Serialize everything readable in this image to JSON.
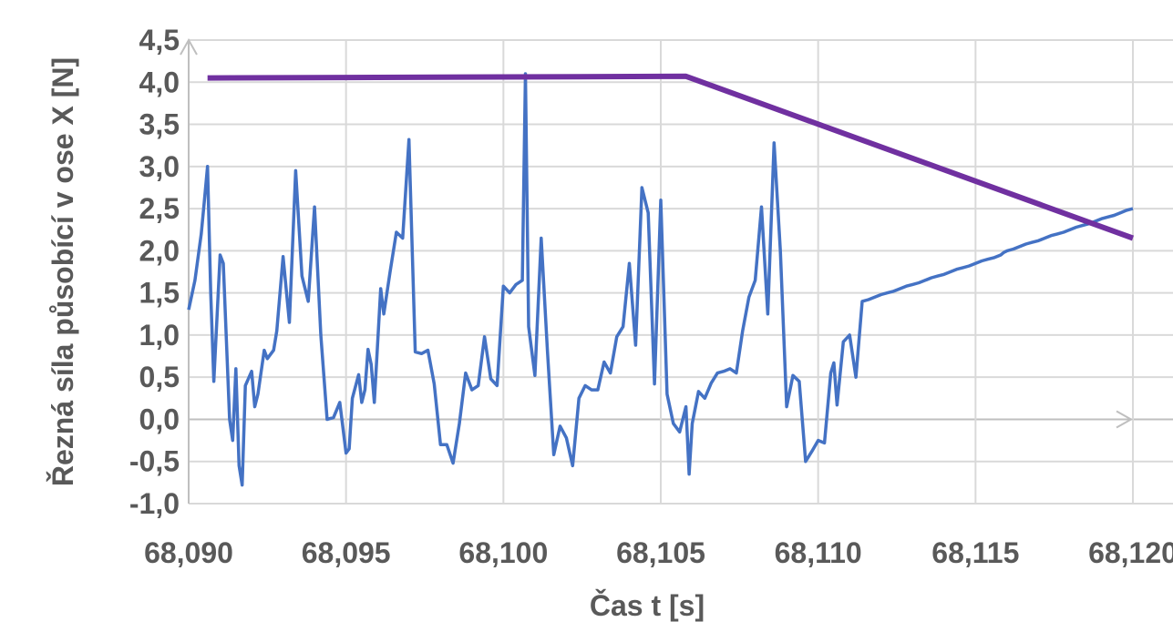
{
  "chart_data": {
    "type": "line",
    "title": "",
    "xlabel": "Čas t [s]",
    "ylabel": "Řezná síla působící v ose X  [N]",
    "xlim": [
      68.09,
      68.12
    ],
    "ylim": [
      -1.0,
      4.5
    ],
    "x_ticks": [
      68.09,
      68.095,
      68.1,
      68.105,
      68.11,
      68.115,
      68.12
    ],
    "x_tick_labels": [
      "68,090",
      "68,095",
      "68,100",
      "68,105",
      "68,110",
      "68,115",
      "68,120"
    ],
    "y_ticks": [
      4.5,
      4.0,
      3.5,
      3.0,
      2.5,
      2.0,
      1.5,
      1.0,
      0.5,
      0.0,
      -0.5,
      -1.0
    ],
    "y_tick_labels": [
      "4,5",
      "4,0",
      "3,5",
      "3,0",
      "2,5",
      "2,0",
      "1,5",
      "1,0",
      "0,5",
      "0,0",
      "-0,5",
      "-1,0"
    ],
    "grid": true,
    "legend": "none",
    "series": [
      {
        "color": "#4472C4",
        "x": [
          68.09,
          68.0902,
          68.0904,
          68.0905,
          68.0906,
          68.0907,
          68.0908,
          68.091,
          68.0911,
          68.0913,
          68.0914,
          68.0915,
          68.0916,
          68.0917,
          68.0918,
          68.092,
          68.0921,
          68.0922,
          68.0924,
          68.0925,
          68.0927,
          68.0928,
          68.093,
          68.0932,
          68.0934,
          68.0936,
          68.0938,
          68.094,
          68.0942,
          68.0944,
          68.0946,
          68.0948,
          68.095,
          68.0951,
          68.0952,
          68.0954,
          68.0955,
          68.0956,
          68.0957,
          68.0958,
          68.0959,
          68.0961,
          68.0962,
          68.0964,
          68.0966,
          68.0968,
          68.097,
          68.0972,
          68.0974,
          68.0976,
          68.0978,
          68.098,
          68.0982,
          68.0984,
          68.0986,
          68.0988,
          68.099,
          68.0992,
          68.0994,
          68.0996,
          68.0998,
          68.1,
          68.1002,
          68.1004,
          68.1006,
          68.1007,
          68.1008,
          68.101,
          68.1012,
          68.1014,
          68.1016,
          68.1018,
          68.102,
          68.1022,
          68.1024,
          68.1026,
          68.1028,
          68.103,
          68.1032,
          68.1034,
          68.1036,
          68.1038,
          68.104,
          68.1042,
          68.1044,
          68.1046,
          68.1048,
          68.105,
          68.1052,
          68.1054,
          68.1056,
          68.1058,
          68.1059,
          68.106,
          68.1062,
          68.1064,
          68.1066,
          68.1068,
          68.107,
          68.1072,
          68.1074,
          68.1076,
          68.1078,
          68.108,
          68.1082,
          68.1084,
          68.1086,
          68.1088,
          68.109,
          68.1092,
          68.1094,
          68.1096,
          68.1098,
          68.11,
          68.1102,
          68.1104,
          68.1105,
          68.1106,
          68.1108,
          68.111,
          68.1112,
          68.1114,
          68.1116,
          68.1118,
          68.112,
          68.1122,
          68.1124,
          68.1126,
          68.1128,
          68.113,
          68.1132,
          68.1134,
          68.1136,
          68.1138,
          68.114,
          68.1142,
          68.1144,
          68.1146,
          68.1148,
          68.115,
          68.1152,
          68.1154,
          68.1156,
          68.1158,
          68.1159,
          68.116,
          68.1162,
          68.1164,
          68.1166,
          68.1168,
          68.117,
          68.1172,
          68.1174,
          68.1176,
          68.1178,
          68.118,
          68.1182,
          68.1184,
          68.1186,
          68.1188,
          68.119,
          68.1192,
          68.1194,
          68.1196,
          68.1198,
          68.12
        ],
        "values": [
          1.3,
          1.65,
          2.2,
          2.6,
          3.0,
          1.5,
          0.45,
          1.95,
          1.85,
          0.0,
          -0.25,
          0.6,
          -0.55,
          -0.78,
          0.4,
          0.57,
          0.15,
          0.3,
          0.82,
          0.72,
          0.82,
          1.05,
          1.93,
          1.15,
          2.95,
          1.7,
          1.4,
          2.52,
          1.0,
          0.0,
          0.02,
          0.2,
          -0.4,
          -0.35,
          0.25,
          0.53,
          0.2,
          0.35,
          0.83,
          0.65,
          0.2,
          1.55,
          1.25,
          1.75,
          2.22,
          2.15,
          3.32,
          0.8,
          0.78,
          0.82,
          0.42,
          -0.3,
          -0.3,
          -0.52,
          -0.05,
          0.55,
          0.35,
          0.4,
          0.98,
          0.48,
          0.4,
          1.58,
          1.5,
          1.6,
          1.65,
          4.1,
          1.1,
          0.52,
          2.15,
          0.8,
          -0.42,
          -0.08,
          -0.22,
          -0.55,
          0.25,
          0.4,
          0.35,
          0.35,
          0.68,
          0.55,
          0.98,
          1.1,
          1.85,
          0.88,
          2.75,
          2.45,
          0.42,
          2.6,
          0.3,
          -0.05,
          -0.15,
          0.15,
          -0.65,
          -0.05,
          0.33,
          0.25,
          0.43,
          0.55,
          0.57,
          0.6,
          0.55,
          1.05,
          1.45,
          1.65,
          2.52,
          1.25,
          3.28,
          2.0,
          0.15,
          0.52,
          0.45,
          -0.5,
          -0.38,
          -0.25,
          -0.28,
          0.55,
          0.67,
          0.17,
          0.92,
          1.0,
          0.5,
          1.4,
          1.42,
          1.45,
          1.48,
          1.5,
          1.52,
          1.55,
          1.58,
          1.6,
          1.62,
          1.65,
          1.68,
          1.7,
          1.72,
          1.75,
          1.78,
          1.8,
          1.82,
          1.85,
          1.88,
          1.9,
          1.92,
          1.95,
          1.98,
          2.0,
          2.02,
          2.05,
          2.08,
          2.1,
          2.12,
          2.15,
          2.18,
          2.2,
          2.22,
          2.25,
          2.28,
          2.3,
          2.32,
          2.35,
          2.38,
          2.4,
          2.42,
          2.45,
          2.48,
          2.5
        ]
      },
      {
        "color": "#7030A0",
        "x": [
          68.0906,
          68.1058,
          68.12
        ],
        "values": [
          4.05,
          4.07,
          2.15
        ]
      }
    ]
  }
}
